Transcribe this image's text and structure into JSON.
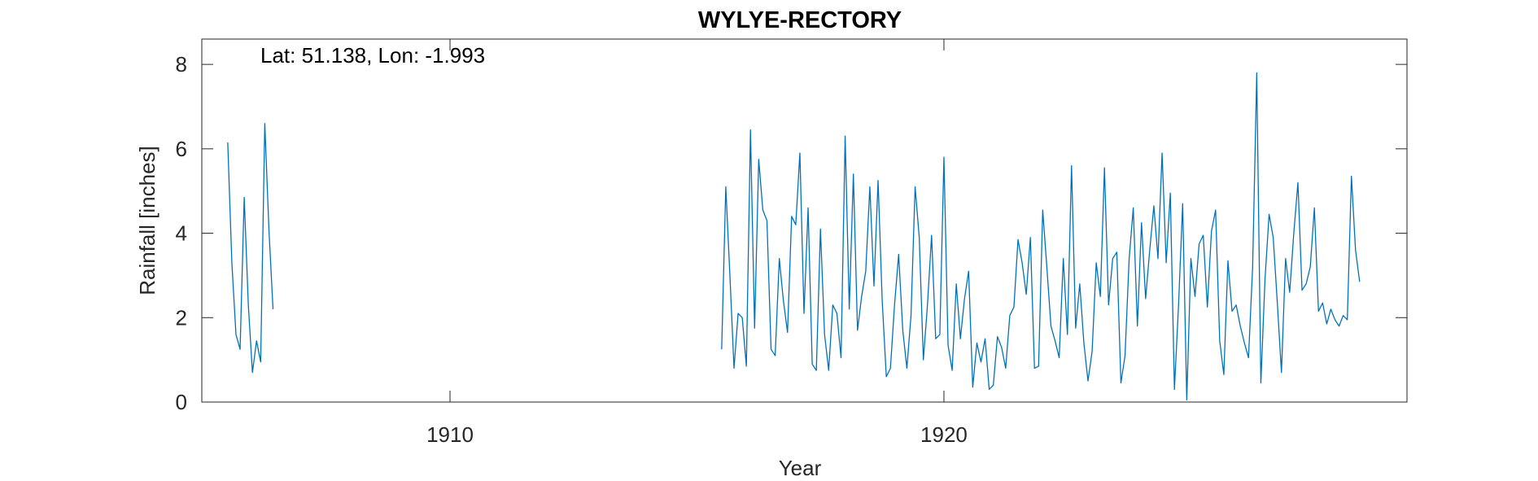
{
  "chart_data": {
    "type": "line",
    "title": "WYLYE-RECTORY",
    "annotation": "Lat: 51.138, Lon: -1.993",
    "xlabel": "Year",
    "ylabel": "Rainfall [inches]",
    "xlim": [
      1904.975,
      1929.375
    ],
    "ylim": [
      0,
      8.6
    ],
    "xticks": [
      1910,
      1920
    ],
    "yticks": [
      0,
      2,
      4,
      6,
      8
    ],
    "grid": false,
    "line_color": "#0072BD",
    "series": [
      {
        "segments": [
          {
            "start_year": 1905.5,
            "values": [
              6.15,
              3.3,
              1.6,
              1.25,
              4.85,
              2.3,
              0.7,
              1.45,
              0.95,
              6.6,
              4.1,
              2.2
            ]
          },
          {
            "start_year": 1915.5,
            "values": [
              1.25,
              5.1,
              3.0,
              0.8,
              2.1,
              2.0,
              0.85,
              6.45,
              1.75,
              5.75,
              4.55,
              4.3,
              1.25,
              1.1,
              3.4,
              2.4,
              1.65,
              4.4,
              4.2,
              5.9,
              2.1,
              4.6,
              0.9,
              0.75,
              4.1,
              1.6,
              0.75,
              2.3,
              2.1,
              1.05,
              6.3,
              2.2,
              5.4,
              1.7,
              2.5,
              3.1,
              5.1,
              2.75,
              5.25,
              2.4,
              0.6,
              0.8,
              2.3,
              3.5,
              1.7,
              0.8,
              2.05,
              5.1,
              3.9,
              1.0,
              2.3,
              3.95,
              1.5,
              1.6,
              5.8,
              1.35,
              0.75,
              2.8,
              1.5,
              2.45,
              3.1,
              0.35,
              1.4,
              0.95,
              1.5,
              0.3,
              0.4,
              1.55,
              1.3,
              0.8,
              2.05,
              2.25,
              3.85,
              3.3,
              2.55,
              3.9,
              0.8,
              0.85,
              4.55,
              3.2,
              1.8,
              1.45,
              1.05,
              3.4,
              1.6,
              5.6,
              1.75,
              2.8,
              1.4,
              0.5,
              1.2,
              3.3,
              2.5,
              5.55,
              2.3,
              3.4,
              3.55,
              0.45,
              1.1,
              3.4,
              4.6,
              1.8,
              4.25,
              2.45,
              3.6,
              4.65,
              3.4,
              5.9,
              3.3,
              4.95,
              0.3,
              2.3,
              4.7,
              0.05,
              3.4,
              2.5,
              3.75,
              3.95,
              2.25,
              4.05,
              4.55,
              1.45,
              0.65,
              3.35,
              2.15,
              2.3,
              1.8,
              1.4,
              1.05,
              3.2,
              7.8,
              0.45,
              2.9,
              4.45,
              3.9,
              2.35,
              0.7,
              3.4,
              2.6,
              4.0,
              5.2,
              2.65,
              2.8,
              3.2,
              4.6,
              2.15,
              2.35,
              1.85,
              2.2,
              1.95,
              1.8,
              2.05,
              1.95,
              5.35,
              3.6,
              2.85
            ]
          }
        ]
      }
    ]
  }
}
